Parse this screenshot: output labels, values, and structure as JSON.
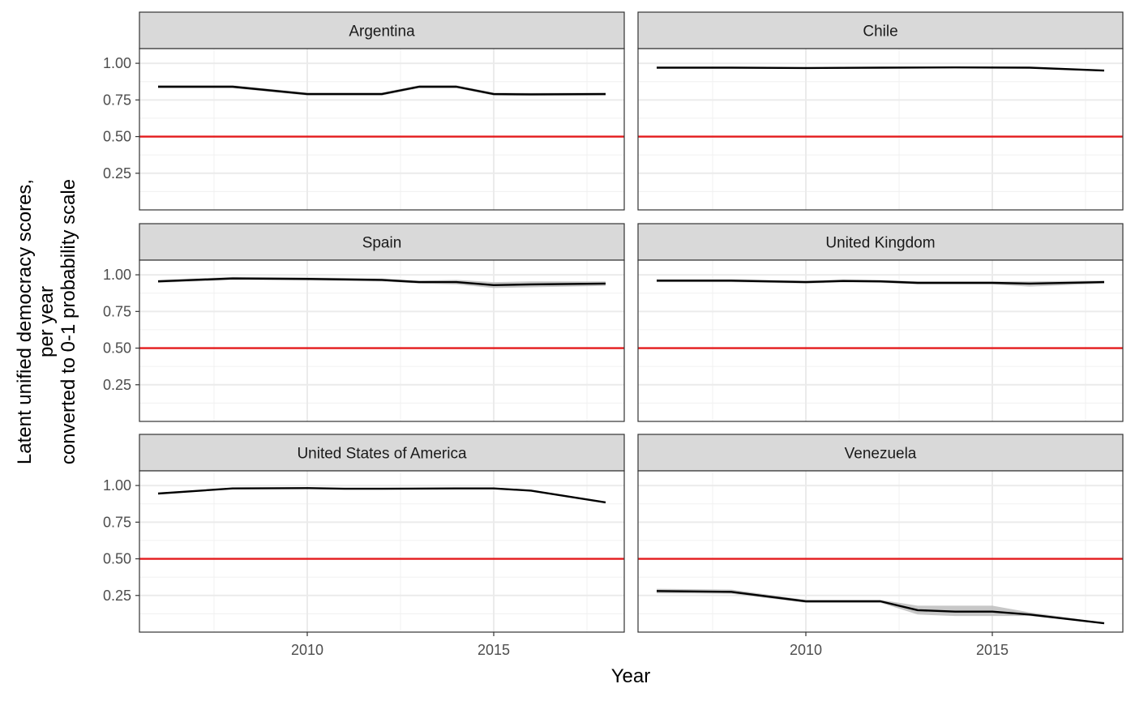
{
  "chart_data": {
    "type": "line",
    "xlabel": "Year",
    "ylabel": [
      "Latent unified democracy scores,",
      "per year",
      "converted to 0-1 probability scale"
    ],
    "x_ticks": [
      2010,
      2015
    ],
    "y_ticks": [
      0.25,
      0.5,
      0.75,
      1.0
    ],
    "y_tick_labels": [
      "0.25",
      "0.50",
      "0.75",
      "1.00"
    ],
    "xlim": [
      2005.5,
      2018.5
    ],
    "ylim": [
      0.0,
      1.1
    ],
    "reference_line": {
      "y": 0.5,
      "color": "#e41a1c"
    },
    "line_color": "#000000",
    "band_color": "#bdbdbd",
    "grid": true,
    "panels": [
      {
        "name": "Argentina",
        "x": [
          2006,
          2008,
          2010,
          2012,
          2013,
          2014,
          2015,
          2016,
          2018
        ],
        "y": [
          0.84,
          0.84,
          0.79,
          0.79,
          0.84,
          0.84,
          0.79,
          0.788,
          0.79
        ],
        "lower": [
          0.83,
          0.83,
          0.78,
          0.78,
          0.83,
          0.83,
          0.78,
          0.778,
          0.78
        ],
        "upper": [
          0.85,
          0.85,
          0.8,
          0.8,
          0.85,
          0.85,
          0.8,
          0.798,
          0.8
        ]
      },
      {
        "name": "Chile",
        "x": [
          2006,
          2008,
          2010,
          2012,
          2014,
          2016,
          2018
        ],
        "y": [
          0.97,
          0.97,
          0.968,
          0.97,
          0.972,
          0.97,
          0.95
        ],
        "lower": [
          0.965,
          0.965,
          0.963,
          0.965,
          0.967,
          0.965,
          0.945
        ],
        "upper": [
          0.975,
          0.975,
          0.973,
          0.975,
          0.977,
          0.975,
          0.955
        ]
      },
      {
        "name": "Spain",
        "x": [
          2006,
          2008,
          2010,
          2012,
          2013,
          2014,
          2015,
          2016,
          2018
        ],
        "y": [
          0.955,
          0.975,
          0.972,
          0.965,
          0.95,
          0.95,
          0.93,
          0.935,
          0.94
        ],
        "lower": [
          0.945,
          0.965,
          0.962,
          0.955,
          0.94,
          0.935,
          0.91,
          0.915,
          0.925
        ],
        "upper": [
          0.965,
          0.985,
          0.982,
          0.975,
          0.96,
          0.965,
          0.95,
          0.955,
          0.955
        ]
      },
      {
        "name": "United Kingdom",
        "x": [
          2006,
          2008,
          2010,
          2011,
          2012,
          2013,
          2014,
          2015,
          2016,
          2018
        ],
        "y": [
          0.96,
          0.96,
          0.95,
          0.958,
          0.955,
          0.945,
          0.945,
          0.945,
          0.94,
          0.95
        ],
        "lower": [
          0.95,
          0.95,
          0.94,
          0.948,
          0.945,
          0.935,
          0.935,
          0.935,
          0.92,
          0.94
        ],
        "upper": [
          0.97,
          0.97,
          0.96,
          0.968,
          0.965,
          0.955,
          0.955,
          0.955,
          0.955,
          0.96
        ]
      },
      {
        "name": "United States of America",
        "x": [
          2006,
          2008,
          2010,
          2011,
          2012,
          2014,
          2015,
          2016,
          2018
        ],
        "y": [
          0.945,
          0.98,
          0.982,
          0.978,
          0.978,
          0.98,
          0.98,
          0.965,
          0.885
        ],
        "lower": [
          0.94,
          0.975,
          0.977,
          0.973,
          0.973,
          0.975,
          0.975,
          0.96,
          0.88
        ],
        "upper": [
          0.95,
          0.985,
          0.987,
          0.983,
          0.983,
          0.985,
          0.985,
          0.97,
          0.89
        ]
      },
      {
        "name": "Venezuela",
        "x": [
          2006,
          2008,
          2010,
          2012,
          2013,
          2014,
          2015,
          2016,
          2018
        ],
        "y": [
          0.28,
          0.275,
          0.21,
          0.21,
          0.15,
          0.14,
          0.14,
          0.12,
          0.06
        ],
        "lower": [
          0.265,
          0.262,
          0.2,
          0.2,
          0.12,
          0.11,
          0.11,
          0.11,
          0.055
        ],
        "upper": [
          0.295,
          0.29,
          0.22,
          0.22,
          0.18,
          0.18,
          0.18,
          0.135,
          0.065
        ]
      }
    ]
  }
}
